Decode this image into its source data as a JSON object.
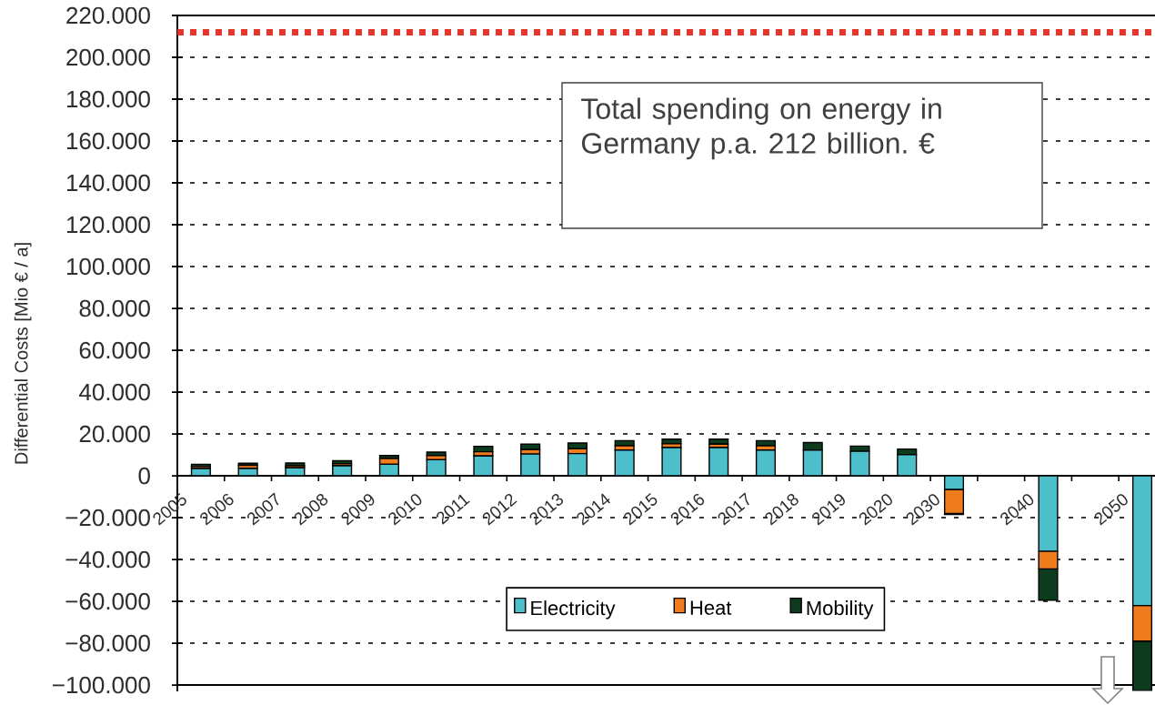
{
  "chart_data": {
    "type": "bar",
    "stacked": true,
    "ylabel": "Differential Costs [Mio € / a]",
    "categories": [
      "2005",
      "2006",
      "2007",
      "2008",
      "2009",
      "2010",
      "2011",
      "2012",
      "2013",
      "2014",
      "2015",
      "2016",
      "2017",
      "2018",
      "2019",
      "2020",
      "2030",
      null,
      "2040",
      null,
      "2050"
    ],
    "series": [
      {
        "name": "Electricity",
        "color": "#4dbfca",
        "values": [
          3500,
          3500,
          3800,
          4800,
          5500,
          7700,
          9500,
          10400,
          10600,
          12300,
          13500,
          13500,
          12300,
          12300,
          11700,
          10100,
          -6500,
          null,
          -36000,
          null,
          -62000
        ]
      },
      {
        "name": "Heat",
        "color": "#ef7d1e",
        "values": [
          1000,
          1500,
          1000,
          1000,
          2800,
          2000,
          2000,
          2100,
          2300,
          2100,
          1800,
          1600,
          2000,
          0,
          0,
          0,
          -11500,
          null,
          -8500,
          null,
          -17000
        ]
      },
      {
        "name": "Mobility",
        "color": "#0d3b1e",
        "values": [
          1000,
          1000,
          1300,
          1400,
          1400,
          1600,
          2600,
          2600,
          2800,
          2400,
          2200,
          2400,
          2500,
          3600,
          2500,
          2700,
          -500,
          null,
          -15000,
          null,
          -23500
        ]
      }
    ],
    "ylim": [
      -103000,
      220000
    ],
    "yticks": [
      {
        "value": -100000,
        "label": "−100.000"
      },
      {
        "value": -80000,
        "label": "−80.000"
      },
      {
        "value": -60000,
        "label": "−60.000"
      },
      {
        "value": -40000,
        "label": "−40.000"
      },
      {
        "value": -20000,
        "label": "−20.000"
      },
      0,
      {
        "value": 20000,
        "label": "20.000"
      },
      {
        "value": 40000,
        "label": "40.000"
      },
      {
        "value": 60000,
        "label": "60.000"
      },
      {
        "value": 80000,
        "label": "80.000"
      },
      {
        "value": 100000,
        "label": "100.000"
      },
      {
        "value": 120000,
        "label": "120.000"
      },
      {
        "value": 140000,
        "label": "140.000"
      },
      {
        "value": 160000,
        "label": "160.000"
      },
      {
        "value": 180000,
        "label": "180.000"
      },
      {
        "value": 200000,
        "label": "200.000"
      },
      {
        "value": 220000,
        "label": "220.000"
      }
    ],
    "grid": "y",
    "legend": "bottom",
    "ref_lines": [
      {
        "axis": "y",
        "value": 212000,
        "color": "#e8352b",
        "line_style": "dotted"
      }
    ],
    "annotations": [
      "Total spending on energy in Germany p.a. 212 billion. €"
    ]
  }
}
